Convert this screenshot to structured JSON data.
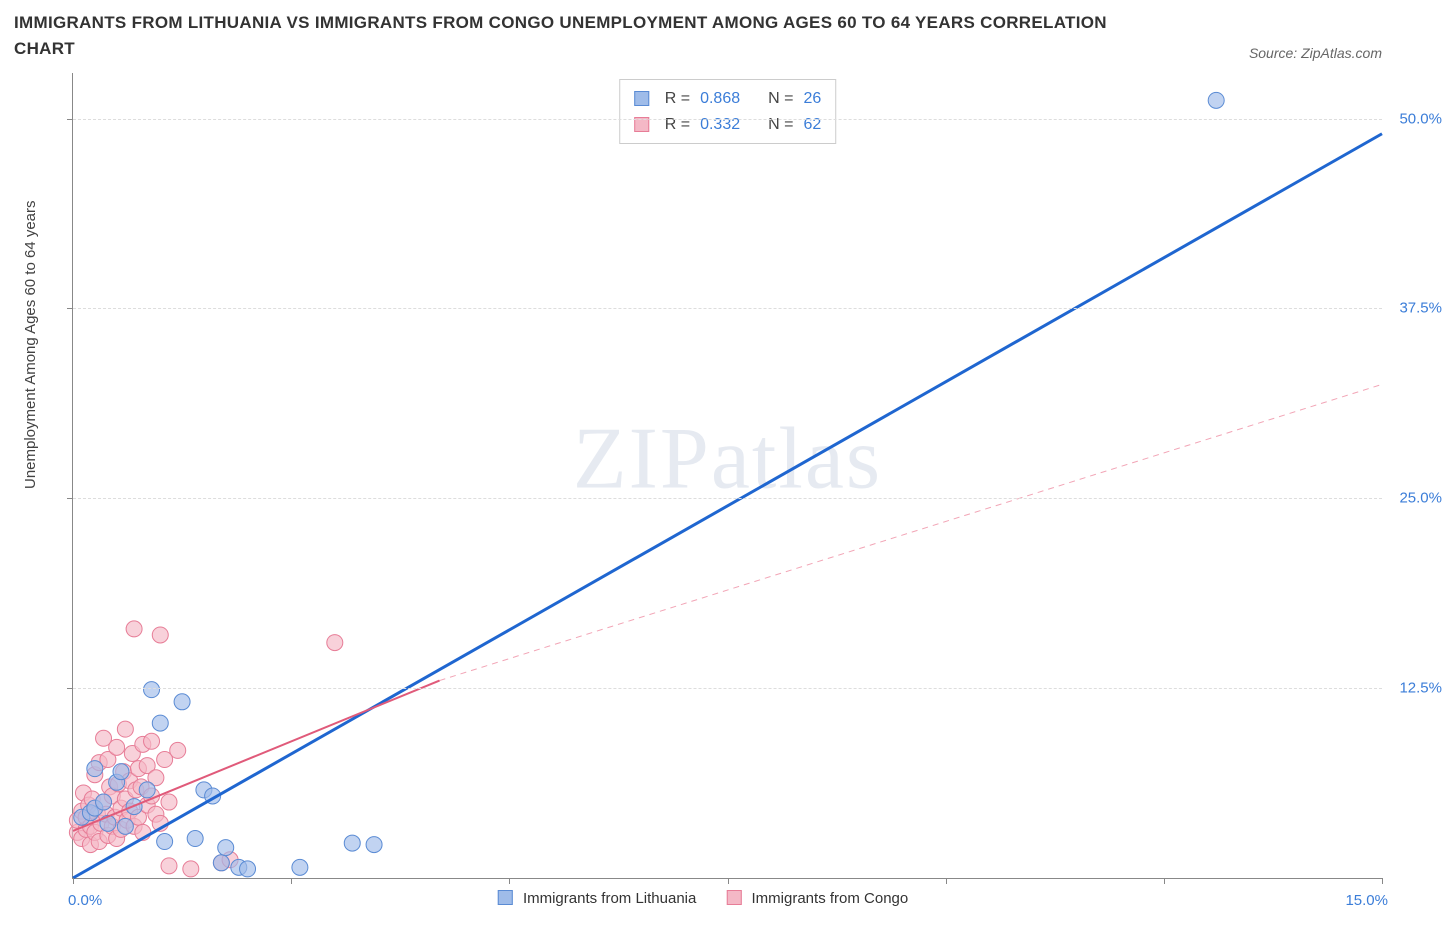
{
  "title": "IMMIGRANTS FROM LITHUANIA VS IMMIGRANTS FROM CONGO UNEMPLOYMENT AMONG AGES 60 TO 64 YEARS CORRELATION CHART",
  "source": "Source: ZipAtlas.com",
  "y_axis_label": "Unemployment Among Ages 60 to 64 years",
  "watermark": "ZIPatlas",
  "chart": {
    "type": "scatter",
    "x_min": 0.0,
    "x_max": 15.0,
    "y_min": 0.0,
    "y_max": 53.0,
    "x_origin_label": "0.0%",
    "x_end_label": "15.0%",
    "y_ticks": [
      {
        "v": 12.5,
        "label": "12.5%"
      },
      {
        "v": 25.0,
        "label": "25.0%"
      },
      {
        "v": 37.5,
        "label": "37.5%"
      },
      {
        "v": 50.0,
        "label": "50.0%"
      }
    ],
    "x_tick_values": [
      0,
      2.5,
      5.0,
      7.5,
      10.0,
      12.5,
      15.0
    ],
    "grid_color": "#dddddd",
    "background_color": "#ffffff",
    "axis_color": "#888888",
    "label_color": "#3b7dd8",
    "series": [
      {
        "name": "Immigrants from Lithuania",
        "fill": "#9fbce9",
        "stroke": "#5a8bd4",
        "opacity": 0.65,
        "marker_r": 8,
        "trend": {
          "color": "#1f66d0",
          "width": 3,
          "dash": "none",
          "x1": 0.0,
          "y1": 0.0,
          "x2": 15.0,
          "y2": 49.0
        },
        "stats": {
          "R": "0.868",
          "N": "26"
        },
        "points": [
          [
            0.1,
            4.0
          ],
          [
            0.2,
            4.3
          ],
          [
            0.25,
            4.6
          ],
          [
            0.25,
            7.2
          ],
          [
            0.35,
            5.0
          ],
          [
            0.4,
            3.6
          ],
          [
            0.5,
            6.3
          ],
          [
            0.55,
            7.0
          ],
          [
            0.6,
            3.4
          ],
          [
            0.7,
            4.7
          ],
          [
            0.9,
            12.4
          ],
          [
            1.0,
            10.2
          ],
          [
            1.05,
            2.4
          ],
          [
            0.85,
            5.8
          ],
          [
            1.25,
            11.6
          ],
          [
            1.4,
            2.6
          ],
          [
            1.5,
            5.8
          ],
          [
            1.6,
            5.4
          ],
          [
            1.7,
            1.0
          ],
          [
            1.75,
            2.0
          ],
          [
            1.9,
            0.7
          ],
          [
            2.0,
            0.6
          ],
          [
            2.6,
            0.7
          ],
          [
            3.2,
            2.3
          ],
          [
            3.45,
            2.2
          ],
          [
            13.1,
            51.2
          ]
        ]
      },
      {
        "name": "Immigrants from Congo",
        "fill": "#f4b8c6",
        "stroke": "#e77d97",
        "opacity": 0.65,
        "marker_r": 8,
        "trend": {
          "color": "#e05a7a",
          "width": 2,
          "dash": "none",
          "x1": 0.0,
          "y1": 3.1,
          "x2": 4.2,
          "y2": 13.0
        },
        "trend_ext": {
          "color": "#f2a5b6",
          "width": 1,
          "dash": "6 5",
          "x1": 4.2,
          "y1": 13.0,
          "x2": 15.0,
          "y2": 32.5
        },
        "stats": {
          "R": "0.332",
          "N": "62"
        },
        "points": [
          [
            0.05,
            3.0
          ],
          [
            0.05,
            3.8
          ],
          [
            0.1,
            2.6
          ],
          [
            0.1,
            4.4
          ],
          [
            0.12,
            5.6
          ],
          [
            0.15,
            3.2
          ],
          [
            0.15,
            4.0
          ],
          [
            0.18,
            4.8
          ],
          [
            0.2,
            2.2
          ],
          [
            0.2,
            3.4
          ],
          [
            0.22,
            5.2
          ],
          [
            0.25,
            6.8
          ],
          [
            0.25,
            3.0
          ],
          [
            0.28,
            4.2
          ],
          [
            0.3,
            7.6
          ],
          [
            0.3,
            2.4
          ],
          [
            0.32,
            3.6
          ],
          [
            0.35,
            5.0
          ],
          [
            0.35,
            9.2
          ],
          [
            0.38,
            4.2
          ],
          [
            0.4,
            2.8
          ],
          [
            0.4,
            7.8
          ],
          [
            0.42,
            6.0
          ],
          [
            0.45,
            3.4
          ],
          [
            0.45,
            5.4
          ],
          [
            0.48,
            4.0
          ],
          [
            0.5,
            8.6
          ],
          [
            0.5,
            2.6
          ],
          [
            0.52,
            6.2
          ],
          [
            0.55,
            4.6
          ],
          [
            0.55,
            3.2
          ],
          [
            0.58,
            7.0
          ],
          [
            0.6,
            5.2
          ],
          [
            0.6,
            9.8
          ],
          [
            0.62,
            3.8
          ],
          [
            0.65,
            6.4
          ],
          [
            0.65,
            4.4
          ],
          [
            0.68,
            8.2
          ],
          [
            0.7,
            16.4
          ],
          [
            0.7,
            3.4
          ],
          [
            0.72,
            5.8
          ],
          [
            0.75,
            7.2
          ],
          [
            0.75,
            4.0
          ],
          [
            0.78,
            6.0
          ],
          [
            0.8,
            8.8
          ],
          [
            0.8,
            3.0
          ],
          [
            0.85,
            4.8
          ],
          [
            0.85,
            7.4
          ],
          [
            0.9,
            5.4
          ],
          [
            0.9,
            9.0
          ],
          [
            0.95,
            4.2
          ],
          [
            0.95,
            6.6
          ],
          [
            1.0,
            16.0
          ],
          [
            1.0,
            3.6
          ],
          [
            1.05,
            7.8
          ],
          [
            1.1,
            0.8
          ],
          [
            1.1,
            5.0
          ],
          [
            1.2,
            8.4
          ],
          [
            1.35,
            0.6
          ],
          [
            1.7,
            1.0
          ],
          [
            1.8,
            1.2
          ],
          [
            3.0,
            15.5
          ]
        ]
      }
    ]
  },
  "legend": {
    "stat_rows": [
      {
        "swatch_fill": "#9fbce9",
        "swatch_stroke": "#5a8bd4",
        "R_label": "R =",
        "N_label": "N =",
        "R": "0.868",
        "N": "26"
      },
      {
        "swatch_fill": "#f4b8c6",
        "swatch_stroke": "#e77d97",
        "R_label": "R =",
        "N_label": "N =",
        "R": "0.332",
        "N": "62"
      }
    ]
  }
}
